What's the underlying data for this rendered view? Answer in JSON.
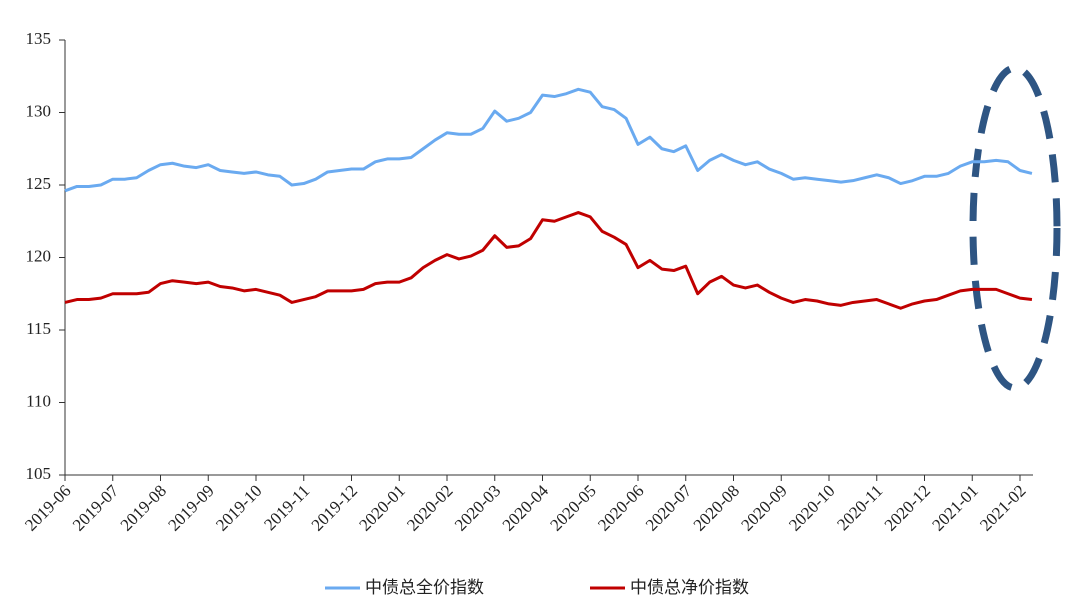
{
  "chart_data": {
    "type": "line",
    "categories": [
      "2019-06",
      null,
      null,
      null,
      "2019-07",
      null,
      null,
      null,
      "2019-08",
      null,
      null,
      null,
      "2019-09",
      null,
      null,
      null,
      "2019-10",
      null,
      null,
      null,
      "2019-11",
      null,
      null,
      null,
      "2019-12",
      null,
      null,
      null,
      "2020-01",
      null,
      null,
      null,
      "2020-02",
      null,
      null,
      null,
      "2020-03",
      null,
      null,
      null,
      "2020-04",
      null,
      null,
      null,
      "2020-05",
      null,
      null,
      null,
      "2020-06",
      null,
      null,
      null,
      "2020-07",
      null,
      null,
      null,
      "2020-08",
      null,
      null,
      null,
      "2020-09",
      null,
      null,
      null,
      "2020-10",
      null,
      null,
      null,
      "2020-11",
      null,
      null,
      null,
      "2020-12",
      null,
      null,
      null,
      "2021-01",
      null,
      null,
      null,
      "2021-02",
      null
    ],
    "series": [
      {
        "name": "中债总全价指数",
        "color": "#6aaaf0",
        "values": [
          124.6,
          124.9,
          124.9,
          125.0,
          125.4,
          125.4,
          125.5,
          126.0,
          126.4,
          126.5,
          126.3,
          126.2,
          126.4,
          126.0,
          125.9,
          125.8,
          125.9,
          125.7,
          125.6,
          125.0,
          125.1,
          125.4,
          125.9,
          126.0,
          126.1,
          126.1,
          126.6,
          126.8,
          126.8,
          126.9,
          127.5,
          128.1,
          128.6,
          128.5,
          128.5,
          128.9,
          130.1,
          129.4,
          129.6,
          130.0,
          131.2,
          131.1,
          131.3,
          131.6,
          131.4,
          130.4,
          130.2,
          129.6,
          127.8,
          128.3,
          127.5,
          127.3,
          127.7,
          126.0,
          126.7,
          127.1,
          126.7,
          126.4,
          126.6,
          126.1,
          125.8,
          125.4,
          125.5,
          125.4,
          125.3,
          125.2,
          125.3,
          125.5,
          125.7,
          125.5,
          125.1,
          125.3,
          125.6,
          125.6,
          125.8,
          126.3,
          126.6,
          126.6,
          126.7,
          126.6,
          126.0,
          125.8
        ]
      },
      {
        "name": "中债总净价指数",
        "color": "#c00000",
        "values": [
          116.9,
          117.1,
          117.1,
          117.2,
          117.5,
          117.5,
          117.5,
          117.6,
          118.2,
          118.4,
          118.3,
          118.2,
          118.3,
          118.0,
          117.9,
          117.7,
          117.8,
          117.6,
          117.4,
          116.9,
          117.1,
          117.3,
          117.7,
          117.7,
          117.7,
          117.8,
          118.2,
          118.3,
          118.3,
          118.6,
          119.3,
          119.8,
          120.2,
          119.9,
          120.1,
          120.5,
          121.5,
          120.7,
          120.8,
          121.3,
          122.6,
          122.5,
          122.8,
          123.1,
          122.8,
          121.8,
          121.4,
          120.9,
          119.3,
          119.8,
          119.2,
          119.1,
          119.4,
          117.5,
          118.3,
          118.7,
          118.1,
          117.9,
          118.1,
          117.6,
          117.2,
          116.9,
          117.1,
          117.0,
          116.8,
          116.7,
          116.9,
          117.0,
          117.1,
          116.8,
          116.5,
          116.8,
          117.0,
          117.1,
          117.4,
          117.7,
          117.8,
          117.8,
          117.8,
          117.5,
          117.2,
          117.1
        ]
      }
    ],
    "ylim": [
      105,
      135
    ],
    "yticks": [
      105,
      110,
      115,
      120,
      125,
      130,
      135
    ],
    "grid": false,
    "legend": "bottom"
  }
}
